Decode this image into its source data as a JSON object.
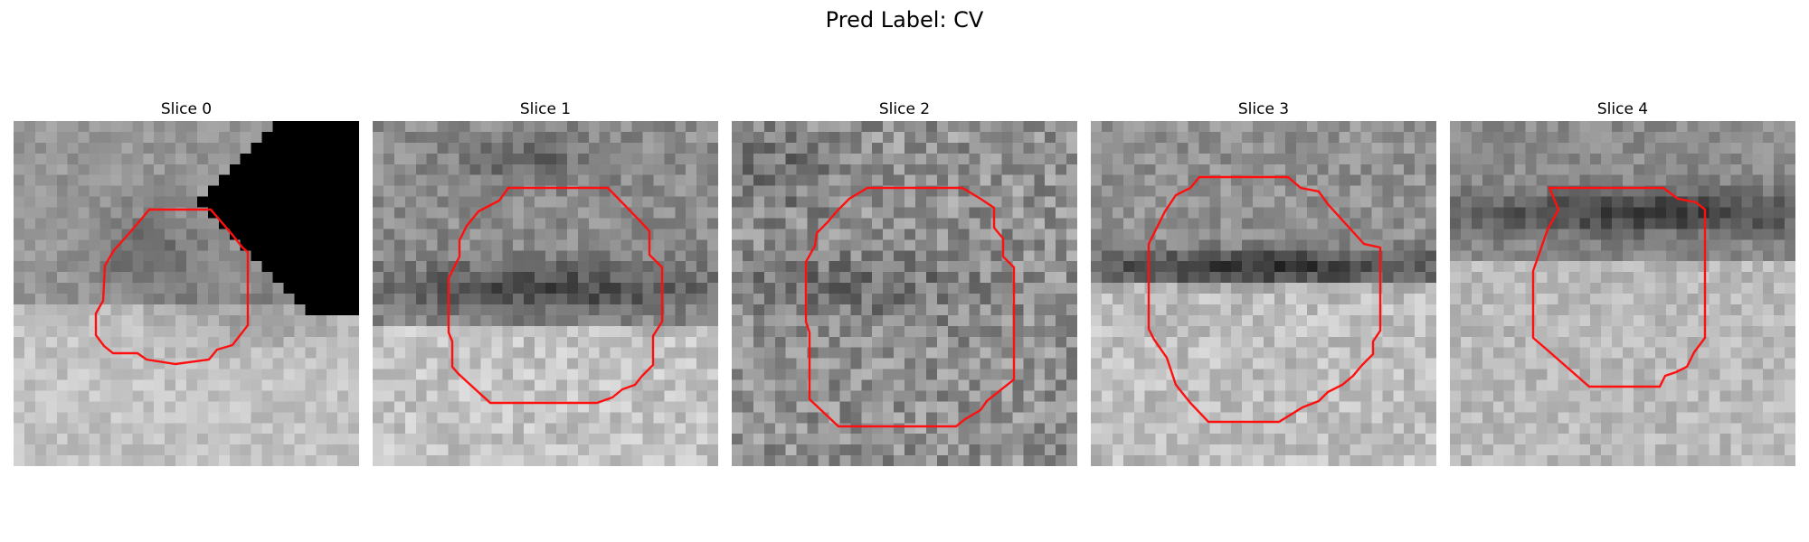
{
  "figure": {
    "title": "Pred Label: CV",
    "overlay_color": "#ff1010"
  },
  "slices": [
    {
      "title": "Slice 0"
    },
    {
      "title": "Slice 1"
    },
    {
      "title": "Slice 2"
    },
    {
      "title": "Slice 3"
    },
    {
      "title": "Slice 4"
    }
  ]
}
